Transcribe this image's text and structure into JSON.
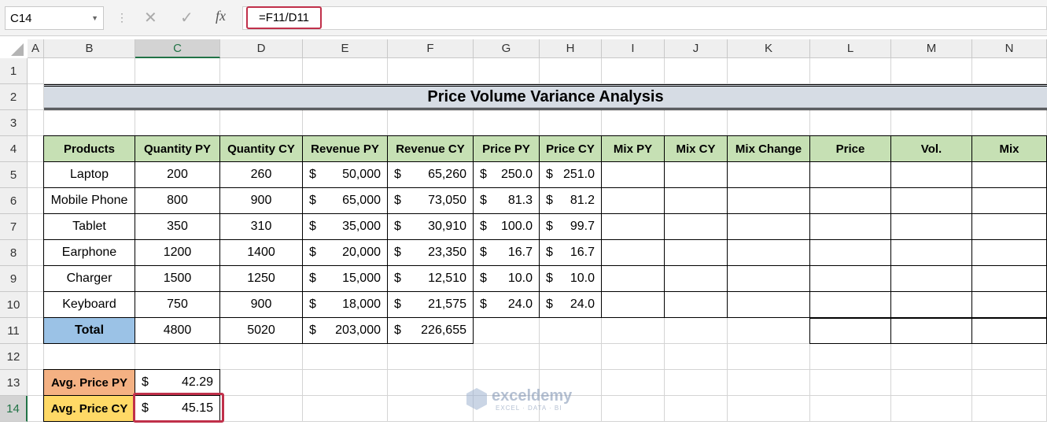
{
  "formula_bar": {
    "name_box": "C14",
    "function_label": "fx",
    "formula": "=F11/D11"
  },
  "column_headers": [
    "A",
    "B",
    "C",
    "D",
    "E",
    "F",
    "G",
    "H",
    "I",
    "J",
    "K",
    "L",
    "M",
    "N"
  ],
  "row_headers": [
    "1",
    "2",
    "3",
    "4",
    "5",
    "6",
    "7",
    "8",
    "9",
    "10",
    "11",
    "12",
    "13",
    "14"
  ],
  "title": "Price Volume Variance Analysis",
  "table": {
    "header": [
      "Products",
      "Quantity PY",
      "Quantity CY",
      "Revenue PY",
      "Revenue CY",
      "Price PY",
      "Price CY",
      "Mix PY",
      "Mix CY",
      "Mix Change",
      "Price",
      "Vol.",
      "Mix"
    ],
    "rows": [
      [
        "Laptop",
        "200",
        "260",
        {
          "symbol": "$",
          "amount": "50,000"
        },
        {
          "symbol": "$",
          "amount": "65,260"
        },
        {
          "symbol": "$",
          "amount": "250.0"
        },
        {
          "symbol": "$",
          "amount": "251.0"
        }
      ],
      [
        "Mobile Phone",
        "800",
        "900",
        {
          "symbol": "$",
          "amount": "65,000"
        },
        {
          "symbol": "$",
          "amount": "73,050"
        },
        {
          "symbol": "$",
          "amount": "81.3"
        },
        {
          "symbol": "$",
          "amount": "81.2"
        }
      ],
      [
        "Tablet",
        "350",
        "310",
        {
          "symbol": "$",
          "amount": "35,000"
        },
        {
          "symbol": "$",
          "amount": "30,910"
        },
        {
          "symbol": "$",
          "amount": "100.0"
        },
        {
          "symbol": "$",
          "amount": "99.7"
        }
      ],
      [
        "Earphone",
        "1200",
        "1400",
        {
          "symbol": "$",
          "amount": "20,000"
        },
        {
          "symbol": "$",
          "amount": "23,350"
        },
        {
          "symbol": "$",
          "amount": "16.7"
        },
        {
          "symbol": "$",
          "amount": "16.7"
        }
      ],
      [
        "Charger",
        "1500",
        "1250",
        {
          "symbol": "$",
          "amount": "15,000"
        },
        {
          "symbol": "$",
          "amount": "12,510"
        },
        {
          "symbol": "$",
          "amount": "10.0"
        },
        {
          "symbol": "$",
          "amount": "10.0"
        }
      ],
      [
        "Keyboard",
        "750",
        "900",
        {
          "symbol": "$",
          "amount": "18,000"
        },
        {
          "symbol": "$",
          "amount": "21,575"
        },
        {
          "symbol": "$",
          "amount": "24.0"
        },
        {
          "symbol": "$",
          "amount": "24.0"
        }
      ]
    ],
    "total": [
      "Total",
      "4800",
      "5020",
      {
        "symbol": "$",
        "amount": "203,000"
      },
      {
        "symbol": "$",
        "amount": "226,655"
      }
    ]
  },
  "averages": [
    {
      "label": "Avg. Price PY",
      "symbol": "$",
      "amount": "42.29"
    },
    {
      "label": "Avg. Price CY",
      "symbol": "$",
      "amount": "45.15"
    }
  ],
  "watermark": {
    "brand": "exceldemy",
    "tagline": "EXCEL · DATA · BI"
  }
}
